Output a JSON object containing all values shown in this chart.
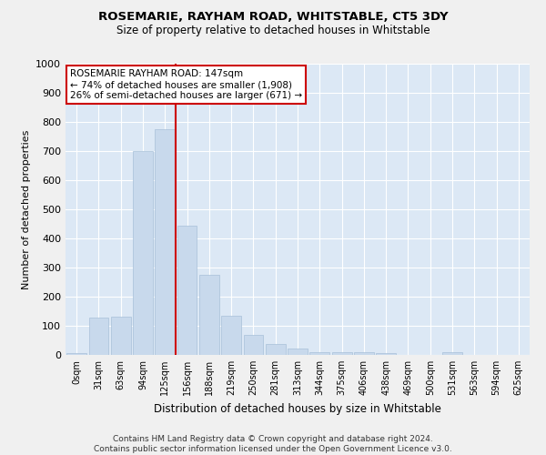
{
  "title": "ROSEMARIE, RAYHAM ROAD, WHITSTABLE, CT5 3DY",
  "subtitle": "Size of property relative to detached houses in Whitstable",
  "xlabel": "Distribution of detached houses by size in Whitstable",
  "ylabel": "Number of detached properties",
  "bar_color": "#c8d9ec",
  "bar_edge_color": "#a8c0d8",
  "background_color": "#dce8f5",
  "grid_color": "#ffffff",
  "fig_background": "#f0f0f0",
  "categories": [
    "0sqm",
    "31sqm",
    "63sqm",
    "94sqm",
    "125sqm",
    "156sqm",
    "188sqm",
    "219sqm",
    "250sqm",
    "281sqm",
    "313sqm",
    "344sqm",
    "375sqm",
    "406sqm",
    "438sqm",
    "469sqm",
    "500sqm",
    "531sqm",
    "563sqm",
    "594sqm",
    "625sqm"
  ],
  "values": [
    5,
    127,
    130,
    700,
    775,
    445,
    275,
    133,
    70,
    37,
    22,
    10,
    10,
    8,
    5,
    0,
    0,
    8,
    0,
    0,
    0
  ],
  "ylim": [
    0,
    1000
  ],
  "yticks": [
    0,
    100,
    200,
    300,
    400,
    500,
    600,
    700,
    800,
    900,
    1000
  ],
  "property_line_x": 4.5,
  "property_label": "ROSEMARIE RAYHAM ROAD: 147sqm",
  "annotation_line1": "← 74% of detached houses are smaller (1,908)",
  "annotation_line2": "26% of semi-detached houses are larger (671) →",
  "annotation_box_color": "#ffffff",
  "annotation_border_color": "#cc0000",
  "vline_color": "#cc0000",
  "footer_line1": "Contains HM Land Registry data © Crown copyright and database right 2024.",
  "footer_line2": "Contains public sector information licensed under the Open Government Licence v3.0."
}
